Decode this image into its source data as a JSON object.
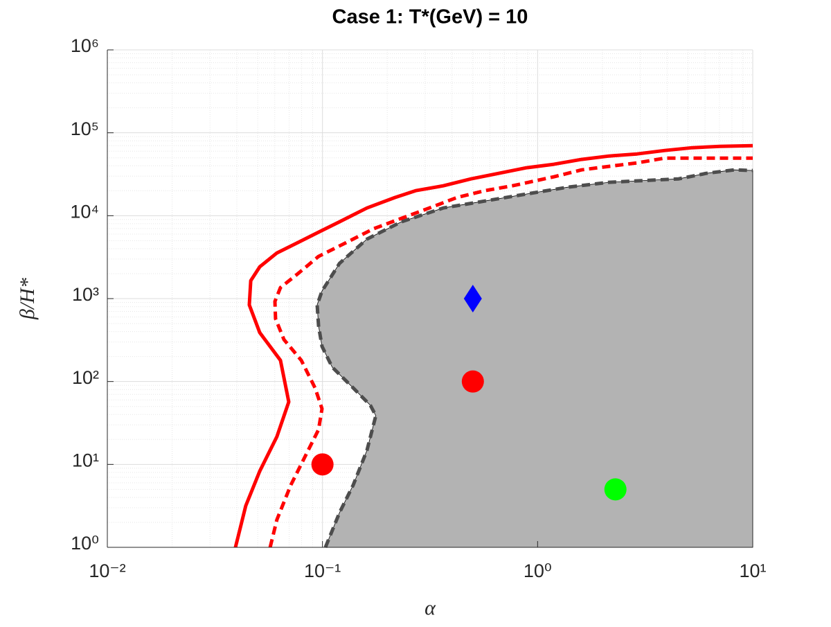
{
  "chart_data": {
    "type": "line",
    "title": "Case 1: T*(GeV) = 10",
    "xlabel": "α",
    "ylabel": "β/H*",
    "xscale": "log",
    "yscale": "log",
    "grid": true,
    "minor_grid": true,
    "xlim": [
      0.01,
      10
    ],
    "ylim": [
      1,
      1000000
    ],
    "xticks": [
      {
        "value": 0.01,
        "label": "10⁻²"
      },
      {
        "value": 0.1,
        "label": "10⁻¹"
      },
      {
        "value": 1,
        "label": "10⁰"
      },
      {
        "value": 10,
        "label": "10¹"
      }
    ],
    "yticks": [
      {
        "value": 1,
        "label": "10⁰"
      },
      {
        "value": 10,
        "label": "10¹"
      },
      {
        "value": 100,
        "label": "10²"
      },
      {
        "value": 1000,
        "label": "10³"
      },
      {
        "value": 10000,
        "label": "10⁴"
      },
      {
        "value": 100000,
        "label": "10⁵"
      },
      {
        "value": 1000000,
        "label": "10⁶"
      }
    ],
    "series": [
      {
        "color": "#b3b3b3",
        "line_color": "#4d4d4d",
        "linestyle": "dashed",
        "fill": true,
        "x": [
          0.1032,
          0.12,
          0.139,
          0.161,
          0.177,
          0.167,
          0.139,
          0.111,
          0.0995,
          0.0959,
          0.0945,
          0.0995,
          0.12,
          0.161,
          0.233,
          0.364,
          0.568,
          0.885,
          1.38,
          2.15,
          3.36,
          4.52,
          6.08,
          8.18,
          10
        ],
        "values": [
          1,
          2.62,
          5.65,
          14.8,
          38.7,
          51.6,
          83.5,
          149,
          265,
          471,
          839,
          1233,
          2662,
          5220,
          8440,
          12400,
          15030,
          18230,
          22080,
          25290,
          26790,
          27800,
          32440,
          35730,
          35060
        ]
      },
      {
        "color": "#ff0000",
        "linestyle": "solid",
        "fill": false,
        "x": [
          0.0394,
          0.044,
          0.0511,
          0.0614,
          0.0697,
          0.0638,
          0.0511,
          0.0457,
          0.0464,
          0.0511,
          0.0614,
          0.0768,
          0.0959,
          0.12,
          0.161,
          0.217,
          0.271,
          0.364,
          0.49,
          0.659,
          0.885,
          1.19,
          1.6,
          2.15,
          2.9,
          3.9,
          5.24,
          7.05,
          10
        ],
        "values": [
          1,
          3.17,
          8.3,
          21.7,
          56.8,
          180,
          389,
          839,
          1645,
          2417,
          3553,
          4740,
          6327,
          8440,
          12400,
          16560,
          20060,
          22950,
          27800,
          32440,
          37840,
          41690,
          47700,
          52480,
          55620,
          61190,
          66100,
          68720,
          70000
        ]
      },
      {
        "color": "#ff0000",
        "linestyle": "dashed",
        "fill": false,
        "x": [
          0.0571,
          0.0614,
          0.0713,
          0.0827,
          0.0959,
          0.0995,
          0.0924,
          0.0797,
          0.0662,
          0.0605,
          0.0601,
          0.0638,
          0.0768,
          0.0959,
          0.129,
          0.173,
          0.233,
          0.314,
          0.422,
          0.568,
          0.763,
          1.19,
          1.6,
          2.15,
          2.9,
          3.9,
          5.24,
          10
        ],
        "values": [
          1,
          2.16,
          5.65,
          12.2,
          26.3,
          46.9,
          83.5,
          180,
          321,
          571,
          925,
          1358,
          1995,
          3228,
          4740,
          6966,
          9296,
          12400,
          16560,
          20060,
          22950,
          29450,
          35730,
          39360,
          43350,
          49550,
          49550,
          49550
        ]
      }
    ],
    "markers": [
      {
        "x": 0.1,
        "y": 10,
        "color": "#ff0000",
        "shape": "circle"
      },
      {
        "x": 0.5,
        "y": 100,
        "color": "#ff0000",
        "shape": "circle"
      },
      {
        "x": 0.5,
        "y": 1000,
        "color": "#0000ff",
        "shape": "diamond"
      },
      {
        "x": 2.3,
        "y": 5,
        "color": "#00ff00",
        "shape": "circle"
      }
    ]
  }
}
